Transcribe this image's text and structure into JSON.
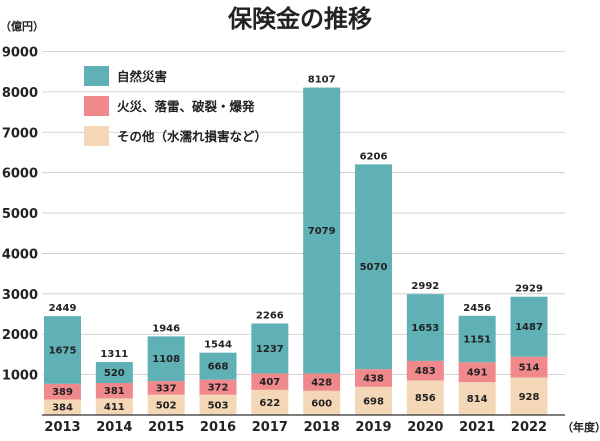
{
  "chart_data": {
    "type": "bar",
    "stacked": true,
    "title": "保険金の推移",
    "ylabel": "（億円）",
    "xlabel": "（年度）",
    "ylim": [
      0,
      9000
    ],
    "yticks": [
      0,
      1000,
      2000,
      3000,
      4000,
      5000,
      6000,
      7000,
      8000,
      9000
    ],
    "ytick_labels": [
      "",
      "1000",
      "2000",
      "3000",
      "4000",
      "5000",
      "6000",
      "7000",
      "8000",
      "9000"
    ],
    "grid": true,
    "legend_position": "top-left",
    "categories": [
      "2013",
      "2014",
      "2015",
      "2016",
      "2017",
      "2018",
      "2019",
      "2020",
      "2021",
      "2022"
    ],
    "series": [
      {
        "name": "その他（水濡れ損害など）",
        "color": "#f4d7b6",
        "values": [
          384,
          411,
          502,
          503,
          622,
          600,
          698,
          856,
          814,
          928
        ]
      },
      {
        "name": "火災、落雷、破裂・爆発",
        "color": "#f0898c",
        "values": [
          389,
          381,
          337,
          372,
          407,
          428,
          438,
          483,
          491,
          514
        ]
      },
      {
        "name": "自然災害",
        "color": "#5fb1b5",
        "values": [
          1675,
          520,
          1108,
          668,
          1237,
          7079,
          5070,
          1653,
          1151,
          1487
        ]
      }
    ],
    "totals": [
      2449,
      1311,
      1946,
      1544,
      2266,
      8107,
      6206,
      2992,
      2456,
      2929
    ],
    "legend_order": [
      2,
      1,
      0
    ]
  }
}
